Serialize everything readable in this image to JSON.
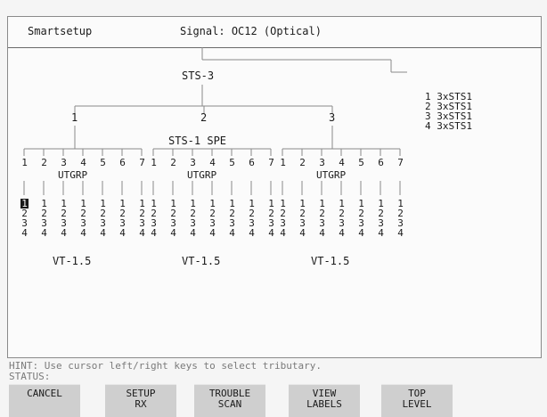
{
  "header": {
    "mode": "Smartsetup",
    "signal_label": "Signal:",
    "signal_value": "OC12 (Optical)"
  },
  "tree": {
    "root": "STS-3",
    "sts1_units": [
      "1",
      "2",
      "3"
    ],
    "spe_label": "STS-1 SPE",
    "utgrp_label": "UTGRP",
    "group_numbers": [
      "1",
      "2",
      "3",
      "4",
      "5",
      "6",
      "7"
    ],
    "vt_label": "VT-1.5",
    "vt_numbers": [
      "1",
      "2",
      "3",
      "4"
    ],
    "selected": {
      "sts1": 1,
      "group": 1,
      "vt": 1
    }
  },
  "legend": [
    "1 3xSTS1",
    "2 3xSTS1",
    "3 3xSTS1",
    "4 3xSTS1"
  ],
  "hint": "HINT: Use cursor left/right keys to select tributary.",
  "status": "STATUS:",
  "softkeys": [
    {
      "line1": "CANCEL",
      "line2": ""
    },
    {
      "line1": "SETUP",
      "line2": "RX"
    },
    {
      "line1": "TROUBLE",
      "line2": "SCAN"
    },
    {
      "line1": "VIEW",
      "line2": "LABELS"
    },
    {
      "line1": "TOP",
      "line2": "LEVEL"
    }
  ]
}
